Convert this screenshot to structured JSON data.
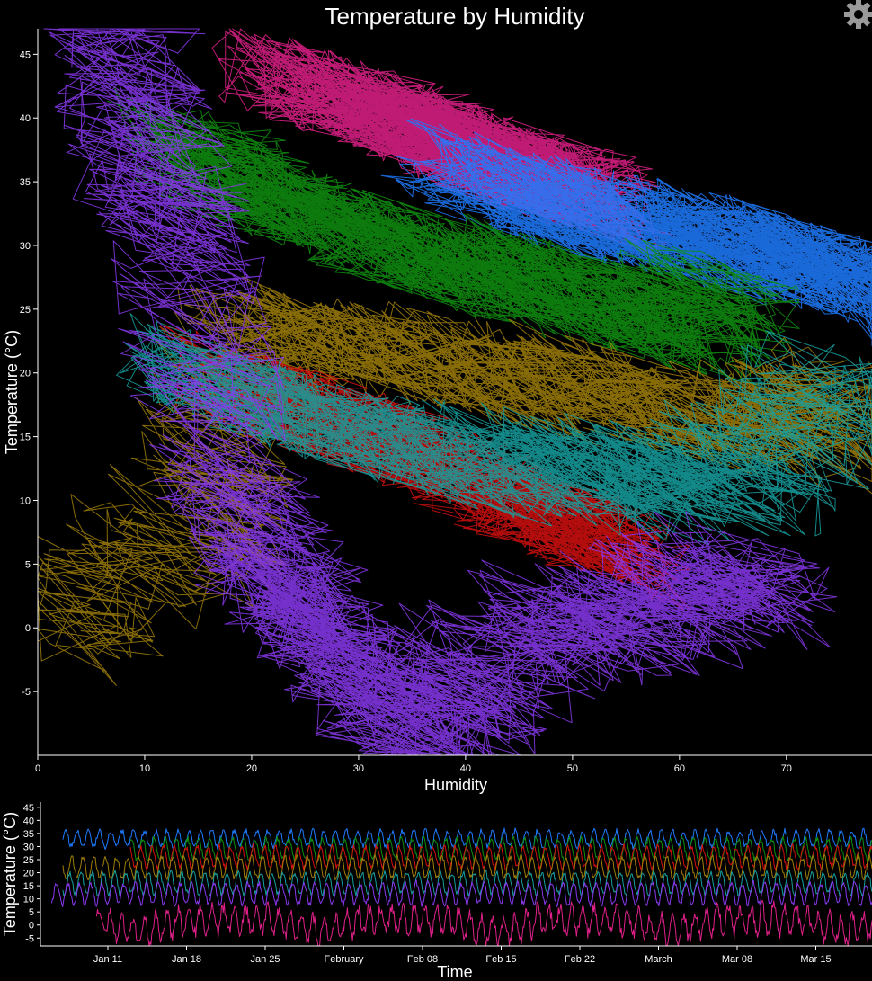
{
  "chart_data": [
    {
      "type": "line",
      "title": "Temperature by Humidity",
      "xlabel": "Humidity",
      "ylabel": "Temperature (°C)",
      "xlim": [
        0,
        78
      ],
      "ylim": [
        -10,
        47
      ],
      "xticks": [
        "0",
        "10",
        "20",
        "30",
        "40",
        "50",
        "60",
        "70"
      ],
      "yticks": [
        "-5",
        "0",
        "5",
        "10",
        "15",
        "20",
        "25",
        "30",
        "35",
        "40",
        "45"
      ],
      "grid": false,
      "legend": "none",
      "series": [
        {
          "color": "#e0208a",
          "humidity": [
            23,
            28,
            33,
            36,
            38,
            41,
            43,
            46,
            49,
            52
          ],
          "temperature": [
            43,
            41.5,
            40.5,
            39,
            38.5,
            37,
            36.5,
            36,
            35.5,
            34
          ]
        },
        {
          "color": "#1e7bff",
          "humidity": [
            40,
            45,
            50,
            55,
            60,
            65,
            70,
            74,
            78
          ],
          "temperature": [
            35,
            34,
            33,
            32,
            31,
            30,
            29,
            28,
            27
          ]
        },
        {
          "color": "#0f8f0f",
          "humidity": [
            14,
            18,
            24,
            30,
            36,
            42,
            48,
            54,
            60,
            64
          ],
          "temperature": [
            38,
            35,
            33,
            31,
            29,
            28,
            27,
            25,
            24,
            26.5
          ]
        },
        {
          "color": "#a07f08",
          "humidity": [
            0,
            15,
            20,
            30,
            40,
            50,
            60,
            70,
            76
          ],
          "temperature": [
            0,
            8,
            23,
            22,
            20.5,
            19,
            17,
            16,
            18.5
          ]
        },
        {
          "color": "#d40f0f",
          "humidity": [
            18,
            25,
            32,
            38,
            44,
            50,
            54
          ],
          "temperature": [
            19,
            17,
            15,
            13,
            10,
            8,
            6.5
          ]
        },
        {
          "color": "#16a0a0",
          "humidity": [
            14,
            20,
            28,
            36,
            44,
            52,
            60,
            68,
            75
          ],
          "temperature": [
            20,
            18,
            16,
            14,
            13,
            12,
            11,
            13,
            20
          ]
        },
        {
          "color": "#8a38f0",
          "humidity": [
            7.5,
            10,
            13,
            18,
            22,
            25,
            30,
            34,
            40,
            48,
            56,
            62,
            68
          ],
          "temperature": [
            47,
            38,
            30,
            12,
            5,
            1,
            -3,
            -9,
            -4,
            0,
            1,
            3,
            4
          ]
        }
      ]
    },
    {
      "type": "line",
      "title": "",
      "xlabel": "Time",
      "ylabel": "Temperature (°C)",
      "xticks": [
        "Jan 11",
        "Jan 18",
        "Jan 25",
        "February",
        "Feb 08",
        "Feb 15",
        "Feb 22",
        "March",
        "Mar 08",
        "Mar 15"
      ],
      "yticks": [
        "-5",
        "0",
        "5",
        "10",
        "15",
        "20",
        "25",
        "30",
        "35",
        "40",
        "45"
      ],
      "ylim": [
        -8,
        47
      ],
      "grid": false,
      "legend": "none",
      "series": [
        {
          "color": "#1e7bff",
          "start": "2015-01-07",
          "end": "2015-03-20",
          "mean": 33,
          "amplitude": 3
        },
        {
          "color": "#0f8f0f",
          "start": "2015-01-13",
          "end": "2015-03-20",
          "mean": 29,
          "amplitude": 4
        },
        {
          "color": "#d40f0f",
          "start": "2015-01-13",
          "end": "2015-03-20",
          "mean": 26,
          "amplitude": 4
        },
        {
          "color": "#a07f08",
          "start": "2015-01-07",
          "end": "2015-03-20",
          "mean": 22,
          "amplitude": 4
        },
        {
          "color": "#16a0a0",
          "start": "2015-01-07",
          "end": "2015-03-20",
          "mean": 16,
          "amplitude": 4
        },
        {
          "color": "#8a38f0",
          "start": "2015-01-06",
          "end": "2015-03-20",
          "mean": 12,
          "amplitude": 4
        },
        {
          "color": "#e0208a",
          "start": "2015-01-10",
          "end": "2015-03-20",
          "mean": 2,
          "amplitude": 5
        }
      ]
    }
  ],
  "toolbar": {
    "settings_icon": "gear-icon"
  }
}
